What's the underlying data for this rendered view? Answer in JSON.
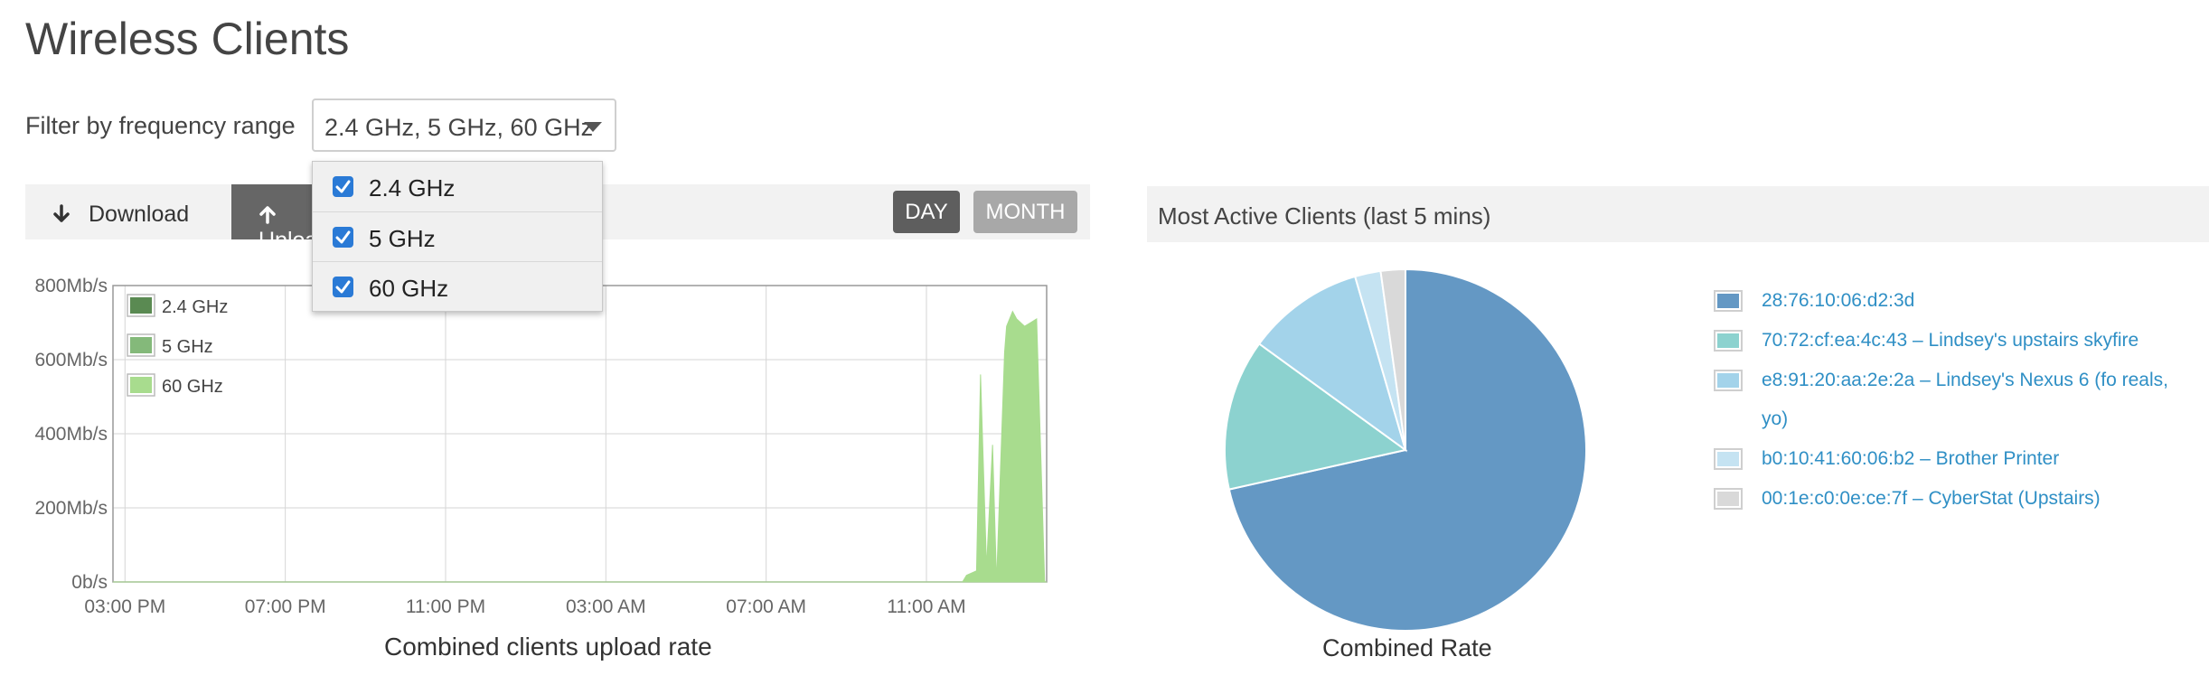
{
  "page": {
    "title": "Wireless Clients"
  },
  "filter": {
    "label": "Filter by frequency range",
    "selected": "2.4 GHz, 5 GHz, 60 GHz",
    "options": [
      {
        "label": "2.4 GHz",
        "checked": true
      },
      {
        "label": "5 GHz",
        "checked": true
      },
      {
        "label": "60 GHz",
        "checked": true
      }
    ]
  },
  "toolbar": {
    "download_label": "Download",
    "upload_label": "Upload",
    "day_label": "DAY",
    "month_label": "MONTH",
    "active_tab": "upload",
    "active_range": "day"
  },
  "colors": {
    "band_24": "#5a8a52",
    "band_5": "#84b97a",
    "band_60": "#a8dc8e",
    "tab_active": "#666666",
    "link": "#2f8fc5"
  },
  "chart_data": [
    {
      "type": "area",
      "caption": "Combined clients upload rate",
      "x_ticks": [
        "03:00 PM",
        "07:00 PM",
        "11:00 PM",
        "03:00 AM",
        "07:00 AM",
        "11:00 AM"
      ],
      "y_ticks": [
        "0b/s",
        "200Mb/s",
        "400Mb/s",
        "600Mb/s",
        "800Mb/s"
      ],
      "ylim": [
        0,
        800
      ],
      "grid": true,
      "legend_position": "top-left",
      "series": [
        {
          "name": "2.4 GHz",
          "color": "#5a8a52",
          "x_hours": [
            0,
            23.3
          ],
          "values": [
            0,
            0
          ]
        },
        {
          "name": "5 GHz",
          "color": "#84b97a",
          "x_hours": [
            0,
            23.3
          ],
          "values": [
            0,
            0
          ]
        },
        {
          "name": "60 GHz",
          "color": "#a8dc8e",
          "x_hours": [
            0,
            21.2,
            21.3,
            21.55,
            21.65,
            21.8,
            21.95,
            22.05,
            22.15,
            22.25,
            22.3,
            22.45,
            22.55,
            22.75,
            22.9,
            23.05,
            23.25,
            23.3
          ],
          "values": [
            0,
            0,
            18,
            30,
            560,
            40,
            370,
            0,
            310,
            620,
            690,
            730,
            710,
            690,
            700,
            710,
            0,
            0
          ]
        }
      ]
    },
    {
      "type": "pie",
      "title": "Most Active Clients (last 5 mins)",
      "caption": "Combined Rate",
      "slices": [
        {
          "label": "28:76:10:06:d2:3d",
          "value": 71.5,
          "color": "#6498c4"
        },
        {
          "label": "70:72:cf:ea:4c:43 – Lindsey's upstairs skyfire",
          "value": 13.5,
          "color": "#8cd2cf"
        },
        {
          "label": "e8:91:20:aa:2e:2a – Lindsey's Nexus 6 (fo reals, yo)",
          "value": 10.5,
          "color": "#a3d3ea"
        },
        {
          "label": "b0:10:41:60:06:b2 – Brother Printer",
          "value": 2.3,
          "color": "#c5e3f2"
        },
        {
          "label": "00:1e:c0:0e:ce:7f – CyberStat (Upstairs)",
          "value": 2.2,
          "color": "#d9d9d9"
        }
      ]
    }
  ]
}
